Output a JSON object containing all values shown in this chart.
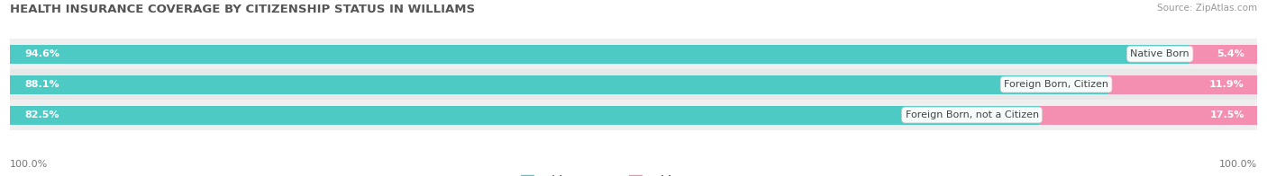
{
  "title": "HEALTH INSURANCE COVERAGE BY CITIZENSHIP STATUS IN WILLIAMS",
  "source": "Source: ZipAtlas.com",
  "categories": [
    "Native Born",
    "Foreign Born, Citizen",
    "Foreign Born, not a Citizen"
  ],
  "with_coverage": [
    94.6,
    88.1,
    82.5
  ],
  "without_coverage": [
    5.4,
    11.9,
    17.5
  ],
  "color_with": "#4ECAC5",
  "color_without": "#F48FB1",
  "row_colors": [
    "#efefef",
    "#e8e8e8",
    "#efefef"
  ],
  "bar_height": 0.62,
  "title_fontsize": 9.5,
  "label_fontsize": 8.0,
  "tick_fontsize": 8.0,
  "legend_fontsize": 8.5,
  "source_fontsize": 7.5,
  "xlim": [
    0,
    100
  ]
}
